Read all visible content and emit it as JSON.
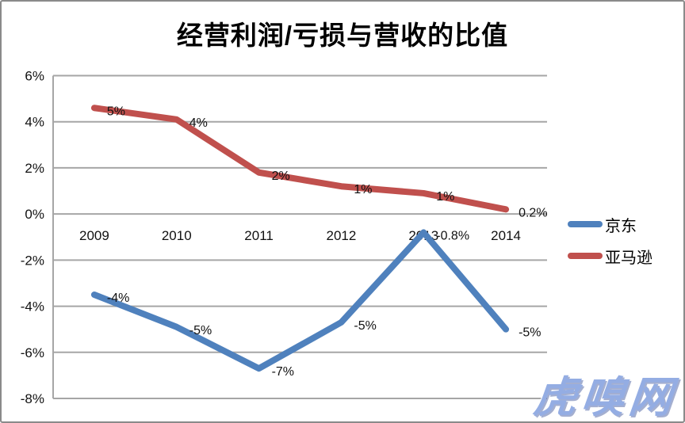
{
  "chart_data": {
    "type": "line",
    "title": "经营利润/亏损与营收的比值",
    "categories": [
      "2009",
      "2010",
      "2011",
      "2012",
      "2013",
      "2014"
    ],
    "series": [
      {
        "key": "jingdong",
        "name": "京东",
        "color": "#4F81BD",
        "values": [
          -3.5,
          -4.9,
          -6.7,
          -4.7,
          -0.8,
          -5.0
        ],
        "point_labels": [
          "-4%",
          "-5%",
          "-7%",
          "-5%",
          "-0.8%",
          "-5%"
        ]
      },
      {
        "key": "amazon",
        "name": "亚马逊",
        "color": "#C0504D",
        "values": [
          4.6,
          4.1,
          1.8,
          1.2,
          0.9,
          0.2
        ],
        "point_labels": [
          "5%",
          "4%",
          "2%",
          "1%",
          "1%",
          "0.2%"
        ]
      }
    ],
    "y_axis": {
      "min": -8,
      "max": 6,
      "step": 2,
      "ticks": [
        "6%",
        "4%",
        "2%",
        "0%",
        "-2%",
        "-4%",
        "-6%",
        "-8%"
      ]
    },
    "x_axis_cross_at": 0,
    "grid": true,
    "legend_position": "right",
    "colors": {
      "grid": "#A6A6A6",
      "axis_text": "#111111",
      "data_label_text": "#111111"
    }
  },
  "watermark": {
    "text": "虎嗅网",
    "color": "#94ade3"
  }
}
